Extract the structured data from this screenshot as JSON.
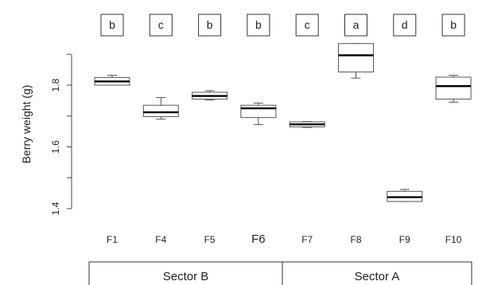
{
  "chart_data": {
    "type": "boxplot",
    "ylabel": "Berry weight (g)",
    "ylim": [
      1.38,
      1.95
    ],
    "yticks": [
      {
        "value": 1.4,
        "label": "1.4"
      },
      {
        "value": 1.6,
        "label": "1.6"
      },
      {
        "value": 1.8,
        "label": "1.8"
      }
    ],
    "categories": [
      "F1",
      "F4",
      "F5",
      "F6",
      "F7",
      "F8",
      "F9",
      "F10"
    ],
    "groups": [
      {
        "name": "Sector B",
        "members": [
          "F1",
          "F4",
          "F5",
          "F6"
        ]
      },
      {
        "name": "Sector A",
        "members": [
          "F7",
          "F8",
          "F9",
          "F10"
        ]
      }
    ],
    "boxes": [
      {
        "label": "F1",
        "min": 1.8,
        "q1": 1.8,
        "median": 1.812,
        "q3": 1.825,
        "max": 1.832,
        "letter": "b"
      },
      {
        "label": "F4",
        "min": 1.69,
        "q1": 1.698,
        "median": 1.712,
        "q3": 1.735,
        "max": 1.76,
        "letter": "c"
      },
      {
        "label": "F5",
        "min": 1.752,
        "q1": 1.755,
        "median": 1.765,
        "q3": 1.777,
        "max": 1.782,
        "letter": "b"
      },
      {
        "label": "F6",
        "min": 1.672,
        "q1": 1.695,
        "median": 1.725,
        "q3": 1.735,
        "max": 1.742,
        "letter": "b"
      },
      {
        "label": "F7",
        "min": 1.663,
        "q1": 1.665,
        "median": 1.673,
        "q3": 1.681,
        "max": 1.682,
        "letter": "c"
      },
      {
        "label": "F8",
        "min": 1.823,
        "q1": 1.843,
        "median": 1.897,
        "q3": 1.935,
        "max": 1.935,
        "letter": "a"
      },
      {
        "label": "F9",
        "min": 1.423,
        "q1": 1.423,
        "median": 1.437,
        "q3": 1.456,
        "max": 1.462,
        "letter": "d"
      },
      {
        "label": "F10",
        "min": 1.745,
        "q1": 1.755,
        "median": 1.797,
        "q3": 1.826,
        "max": 1.832,
        "letter": "b"
      }
    ],
    "grid": false,
    "legend": "none"
  }
}
